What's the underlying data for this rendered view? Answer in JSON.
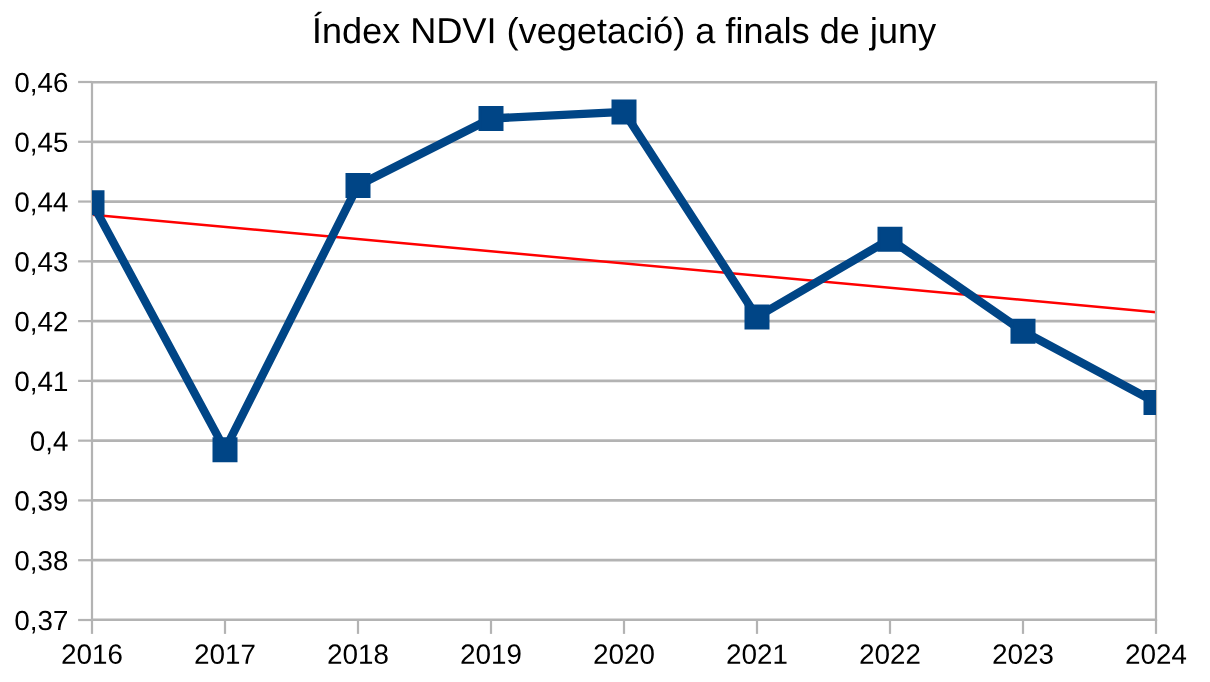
{
  "chart_data": {
    "type": "line",
    "title": "Índex NDVI (vegetació) a finals de juny",
    "x": [
      2016,
      2017,
      2018,
      2019,
      2020,
      2021,
      2022,
      2023,
      2024
    ],
    "series": [
      {
        "color": "#004586",
        "marker": "square",
        "values": [
          0.4398,
          0.3985,
          0.4427,
          0.4539,
          0.455,
          0.4207,
          0.4337,
          0.4183,
          0.4064
        ]
      },
      {
        "type": "line",
        "color": "#ff0000",
        "marker": "none",
        "x": [
          2016,
          2024
        ],
        "values": [
          0.4378,
          0.4215
        ]
      }
    ],
    "xlim": [
      2016,
      2024
    ],
    "xticks": [
      2016,
      2017,
      2018,
      2019,
      2020,
      2021,
      2022,
      2023,
      2024
    ],
    "ylim": [
      0.37,
      0.46
    ],
    "yticks": [
      {
        "value": 0.37,
        "label": "0,37"
      },
      {
        "value": 0.38,
        "label": "0,38"
      },
      {
        "value": 0.39,
        "label": "0,39"
      },
      {
        "value": 0.4,
        "label": "0,4"
      },
      {
        "value": 0.41,
        "label": "0,41"
      },
      {
        "value": 0.42,
        "label": "0,42"
      },
      {
        "value": 0.43,
        "label": "0,43"
      },
      {
        "value": 0.44,
        "label": "0,44"
      },
      {
        "value": 0.45,
        "label": "0,45"
      },
      {
        "value": 0.46,
        "label": "0,46"
      }
    ],
    "grid": "y",
    "legend": false
  }
}
